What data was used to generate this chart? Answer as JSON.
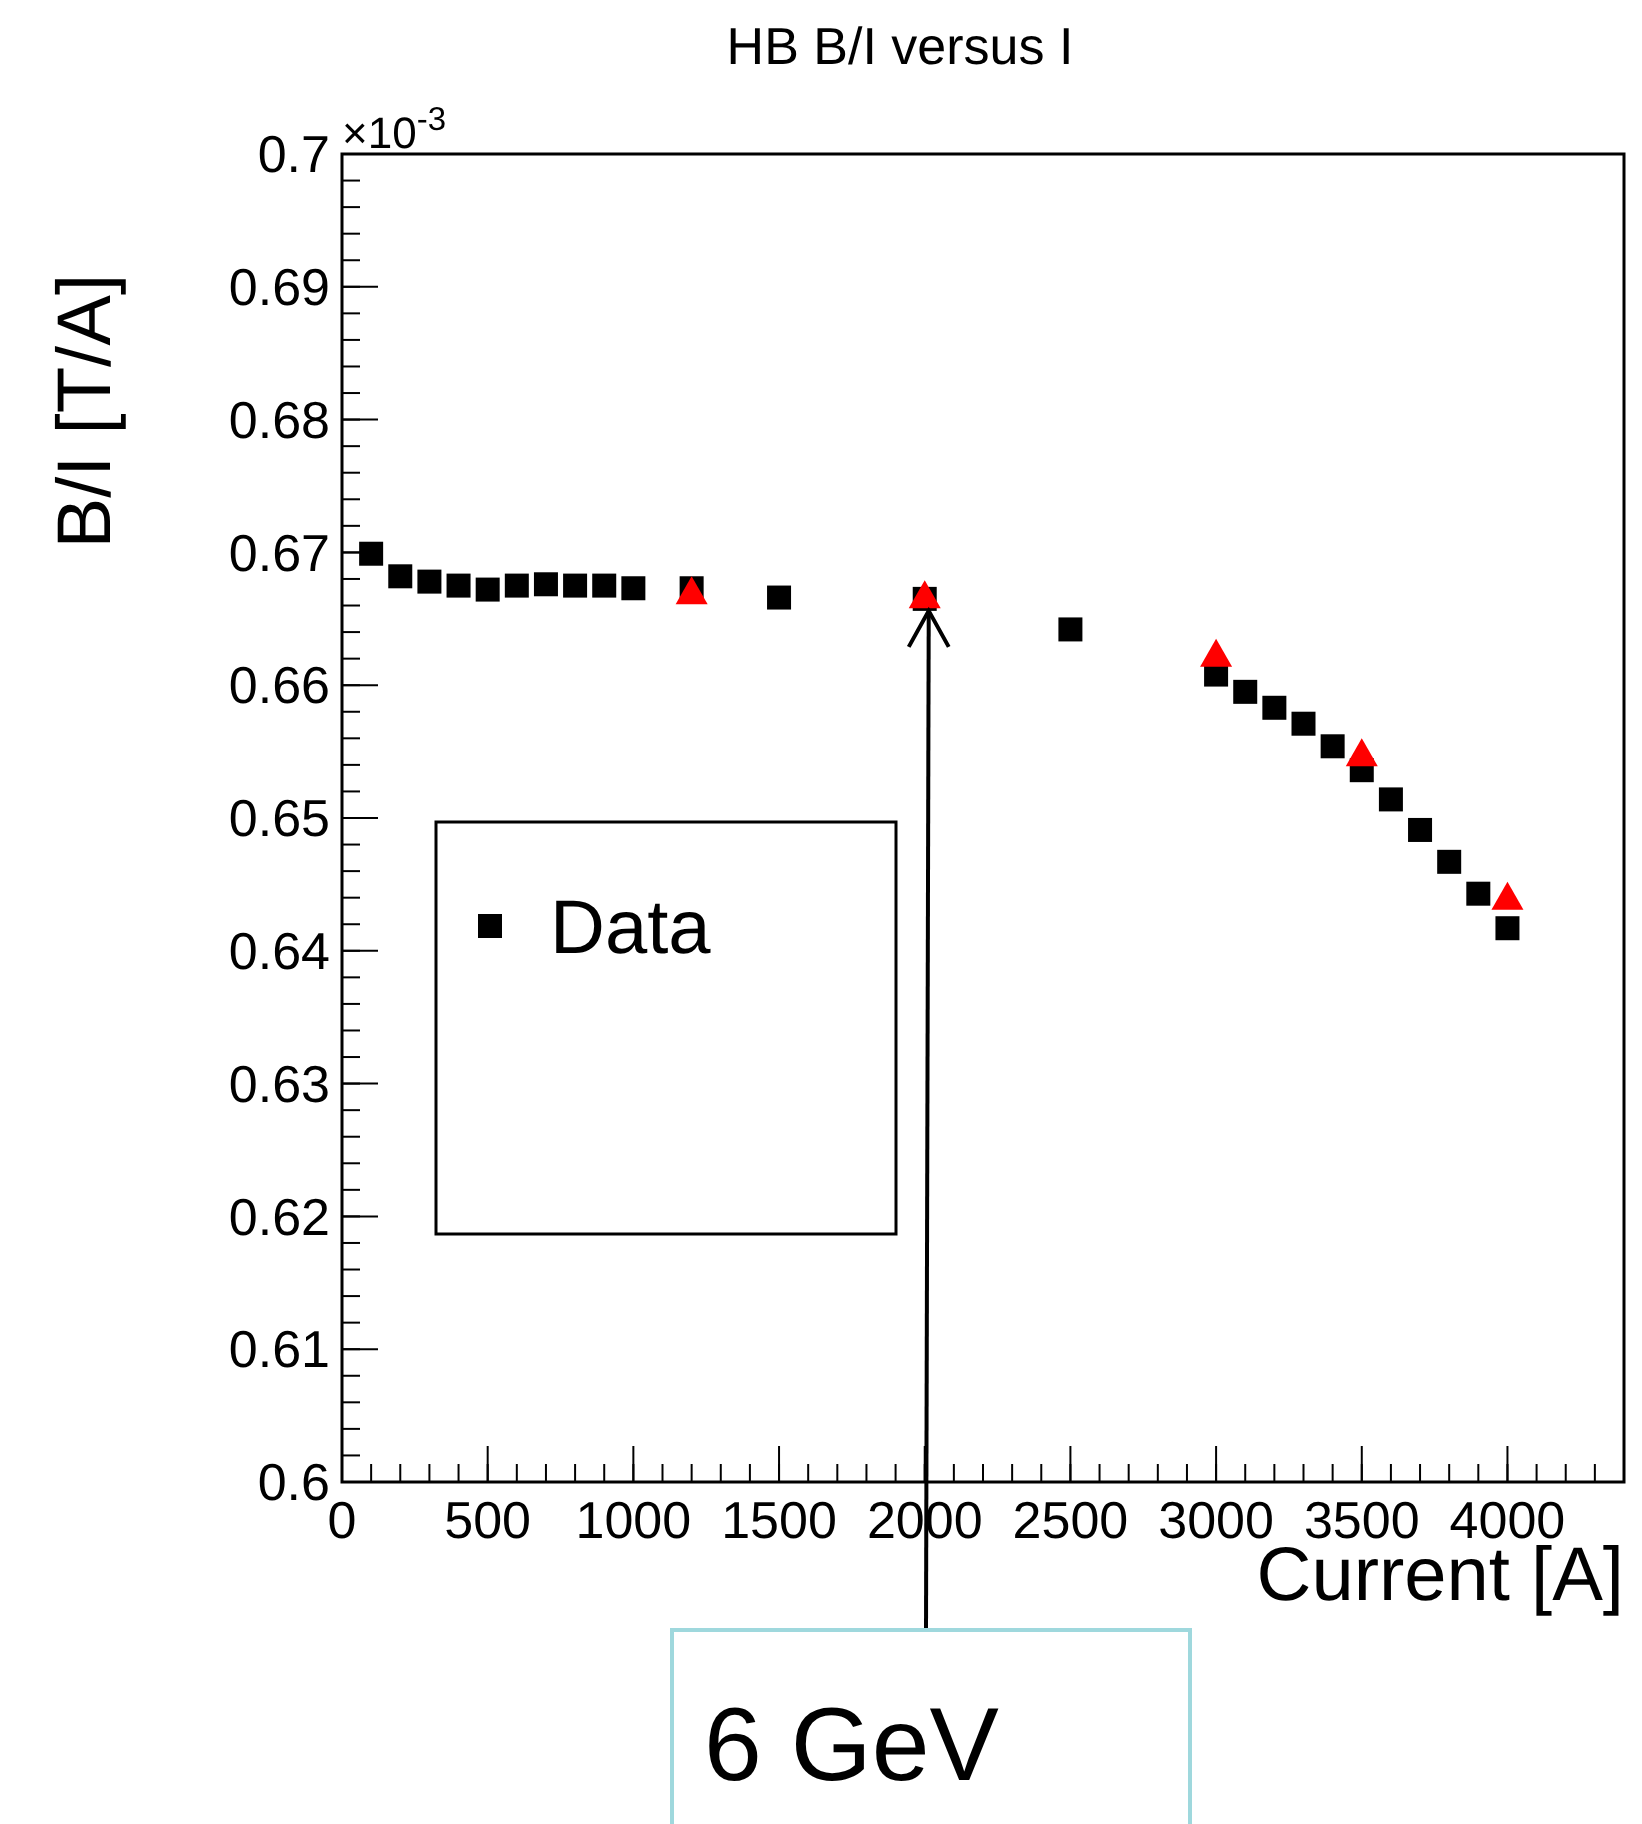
{
  "chart_data": {
    "type": "scatter",
    "title": "HB B/I versus I",
    "xlabel": "Current [A]",
    "ylabel": "B/I [T/A]",
    "annotations": [
      "×10$^{-3}$",
      {
        "text": "6 GeV",
        "x": 2000,
        "y": 0.6665
      }
    ],
    "series": [
      {
        "name": "Data",
        "color": "#000000",
        "marker": "square",
        "x": [
          100,
          200,
          300,
          400,
          500,
          600,
          700,
          800,
          900,
          1000,
          1200,
          1500,
          2000,
          2500,
          3000,
          3100,
          3200,
          3300,
          3400,
          3500,
          3600,
          3700,
          3800,
          3900,
          4000
        ],
        "values": [
          0.6699,
          0.6682,
          0.6678,
          0.6675,
          0.6672,
          0.6675,
          0.6676,
          0.6675,
          0.6675,
          0.6673,
          0.6673,
          0.6666,
          0.6665,
          0.6642,
          0.6608,
          0.6595,
          0.6583,
          0.6571,
          0.6554,
          0.6536,
          0.6514,
          0.6491,
          0.6467,
          0.6443,
          0.6417
        ]
      },
      {
        "color": "#ff0000",
        "marker": "triangle",
        "x": [
          1200,
          2000,
          3000,
          3500,
          4000
        ],
        "values": [
          0.667,
          0.6667,
          0.6623,
          0.6548,
          0.644
        ]
      }
    ],
    "xlim": [
      0,
      4400
    ],
    "xticks": [
      0,
      500,
      1000,
      1500,
      2000,
      2500,
      3000,
      3500,
      4000
    ],
    "ylim": [
      0.6,
      0.7
    ],
    "yticks": [
      0.6,
      0.61,
      0.62,
      0.63,
      0.64,
      0.65,
      0.66,
      0.67,
      0.68,
      0.69,
      0.7
    ],
    "grid": false,
    "legend": "left"
  }
}
